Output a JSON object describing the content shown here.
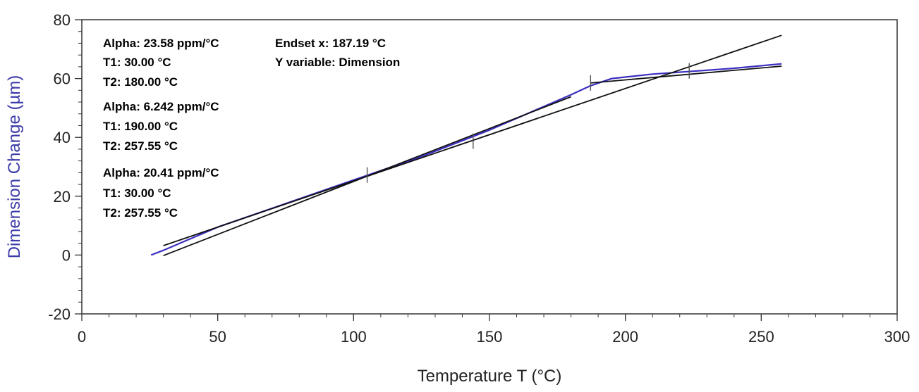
{
  "colors": {
    "data_curve": "#3a2fbf",
    "fit_line": "#111111",
    "annotation_text": "#2e2aa6",
    "ylabel_text": "#3a3aa8",
    "axis": "#333333"
  },
  "chart_data": {
    "type": "line",
    "xlabel": "Temperature T (°C)",
    "ylabel": "Dimension Change (µm)",
    "xlim": [
      0,
      300
    ],
    "ylim": [
      -20,
      80
    ],
    "x_ticks": [
      0,
      50,
      100,
      150,
      200,
      250,
      300
    ],
    "y_ticks": [
      -20,
      0,
      20,
      40,
      60,
      80
    ],
    "x_tick_labels": [
      "0",
      "50",
      "100",
      "150",
      "200",
      "250",
      "300"
    ],
    "y_tick_labels": [
      "-20",
      "0",
      "20",
      "40",
      "60",
      "80"
    ],
    "grid": false,
    "series": [
      {
        "role": "data",
        "x": [
          25.5,
          30,
          50,
          75,
          100,
          125,
          150,
          165,
          180,
          187,
          195,
          210,
          225,
          240,
          257.5
        ],
        "y": [
          0,
          1.6,
          9.5,
          17.5,
          25.5,
          33.5,
          42.5,
          48.5,
          54.5,
          57.5,
          60,
          61.5,
          62.5,
          63.5,
          65
        ]
      },
      {
        "role": "fit",
        "x": [
          30,
          180
        ],
        "y": [
          -0.2,
          53.8
        ]
      },
      {
        "role": "fit",
        "x": [
          187.2,
          257.5
        ],
        "y": [
          58.5,
          64.2
        ]
      },
      {
        "role": "fit",
        "x": [
          30,
          257.5
        ],
        "y": [
          3.2,
          74.7
        ]
      }
    ],
    "tick_marks": [
      {
        "x": 105,
        "y": 27.2
      },
      {
        "x": 144,
        "y": 38.7
      },
      {
        "x": 187.2,
        "y": 58.5
      },
      {
        "x": 223.5,
        "y": 62.6
      }
    ],
    "annotations": [
      "Alpha: 23.58 ppm/°C",
      "T1: 30.00 °C",
      "T2: 180.00 °C",
      "Alpha: 6.242 ppm/°C",
      "T1: 190.00 °C",
      "T2: 257.55 °C",
      "Alpha: 20.41 ppm/°C",
      "T1: 30.00 °C",
      "T2: 257.55 °C",
      "Endset x: 187.19 °C",
      "Y variable: Dimension"
    ]
  }
}
